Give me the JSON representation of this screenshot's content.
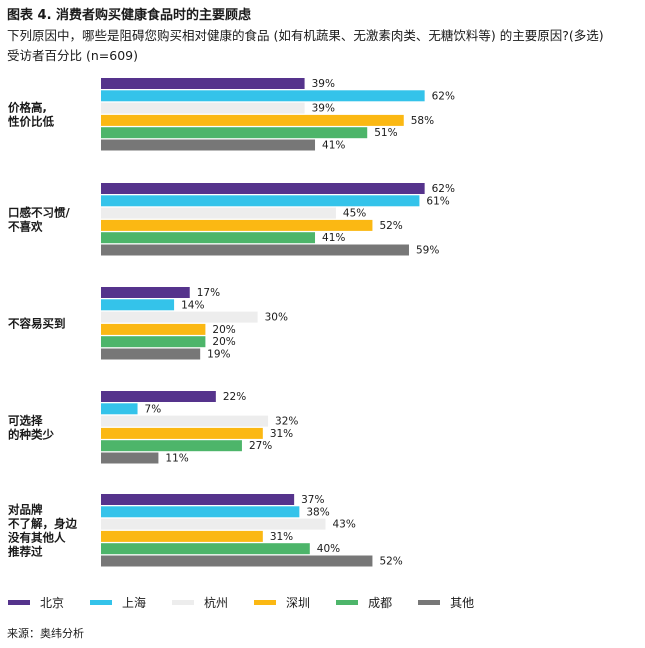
{
  "figure": {
    "title": "图表 4. 消费者购买健康食品时的主要顾虑",
    "subtitle_line1": "下列原因中，哪些是阻碍您购买相对健康的食品 (如有机蔬果、无激素肉类、无糖饮料等) 的主要原因?(多选)",
    "subtitle_line2": "受访者百分比 (n=609)",
    "source": "来源：奥纬分析"
  },
  "chart_data": {
    "type": "bar",
    "orientation": "horizontal",
    "title": "图表 4. 消费者购买健康食品时的主要顾虑",
    "value_suffix": "%",
    "xlim": [
      0,
      100
    ],
    "grid": false,
    "legend_position": "bottom",
    "categories": [
      [
        "价格高,",
        "性价比低"
      ],
      [
        "口感不习惯/",
        "不喜欢"
      ],
      [
        "不容易买到"
      ],
      [
        "可选择",
        "的种类少"
      ],
      [
        "对品牌",
        "不了解，身边",
        "没有其他人",
        "推荐过"
      ]
    ],
    "series": [
      {
        "name": "北京",
        "color": "#55338c",
        "values": [
          39,
          62,
          17,
          22,
          37
        ]
      },
      {
        "name": "上海",
        "color": "#34c3ea",
        "values": [
          62,
          61,
          14,
          7,
          38
        ]
      },
      {
        "name": "杭州",
        "color": "#ededed",
        "values": [
          39,
          45,
          30,
          32,
          43
        ]
      },
      {
        "name": "深圳",
        "color": "#fbb813",
        "values": [
          58,
          52,
          20,
          31,
          31
        ]
      },
      {
        "name": "成都",
        "color": "#4db56a",
        "values": [
          51,
          41,
          20,
          27,
          40
        ]
      },
      {
        "name": "其他",
        "color": "#777777",
        "values": [
          41,
          59,
          19,
          11,
          52
        ]
      }
    ]
  }
}
